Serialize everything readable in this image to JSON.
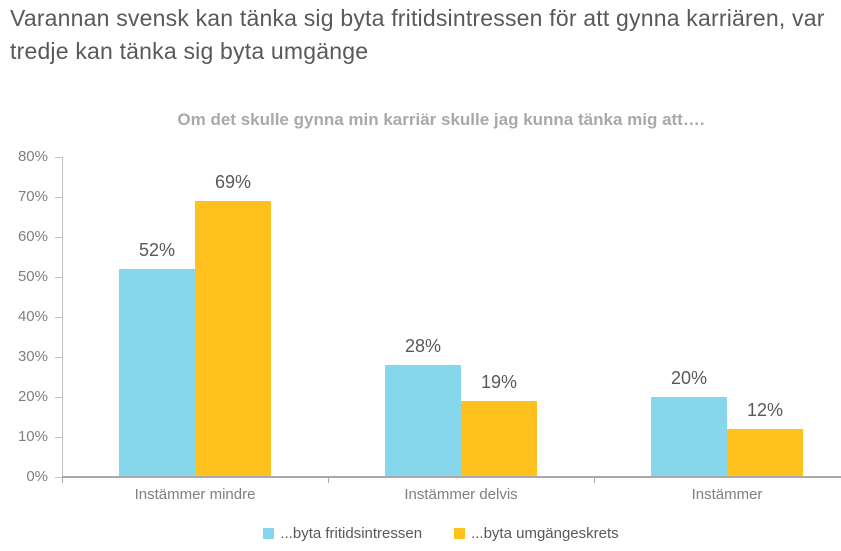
{
  "title": "Varannan svensk kan tänka sig byta fritidsintressen för att gynna karriären, var tredje kan tänka sig byta umgänge",
  "colors": {
    "series_blue": "#87D7EC",
    "series_yellow": "#FEC11E",
    "title_text": "#595959",
    "subtitle_text": "#A9A9A9",
    "axis_text": "#7F7F7F",
    "axis_line": "#BFBFBF"
  },
  "chart_data": {
    "type": "bar",
    "title": "Om det skulle gynna min karriär skulle jag kunna tänka mig att….",
    "categories": [
      "Instämmer mindre",
      "Instämmer delvis",
      "Instämmer"
    ],
    "series": [
      {
        "name": "...byta fritidsintressen",
        "color": "#87D7EC",
        "values": [
          52,
          28,
          20
        ]
      },
      {
        "name": "...byta umgängeskrets",
        "color": "#FEC11E",
        "values": [
          69,
          19,
          12
        ]
      }
    ],
    "value_labels": [
      [
        "52%",
        "28%",
        "20%"
      ],
      [
        "69%",
        "19%",
        "12%"
      ]
    ],
    "xlabel": "",
    "ylabel": "",
    "ylim": [
      0,
      80
    ],
    "ytick_step": 10,
    "ytick_labels": [
      "0%",
      "10%",
      "20%",
      "30%",
      "40%",
      "50%",
      "60%",
      "70%",
      "80%"
    ],
    "grid": false,
    "legend_position": "bottom"
  }
}
